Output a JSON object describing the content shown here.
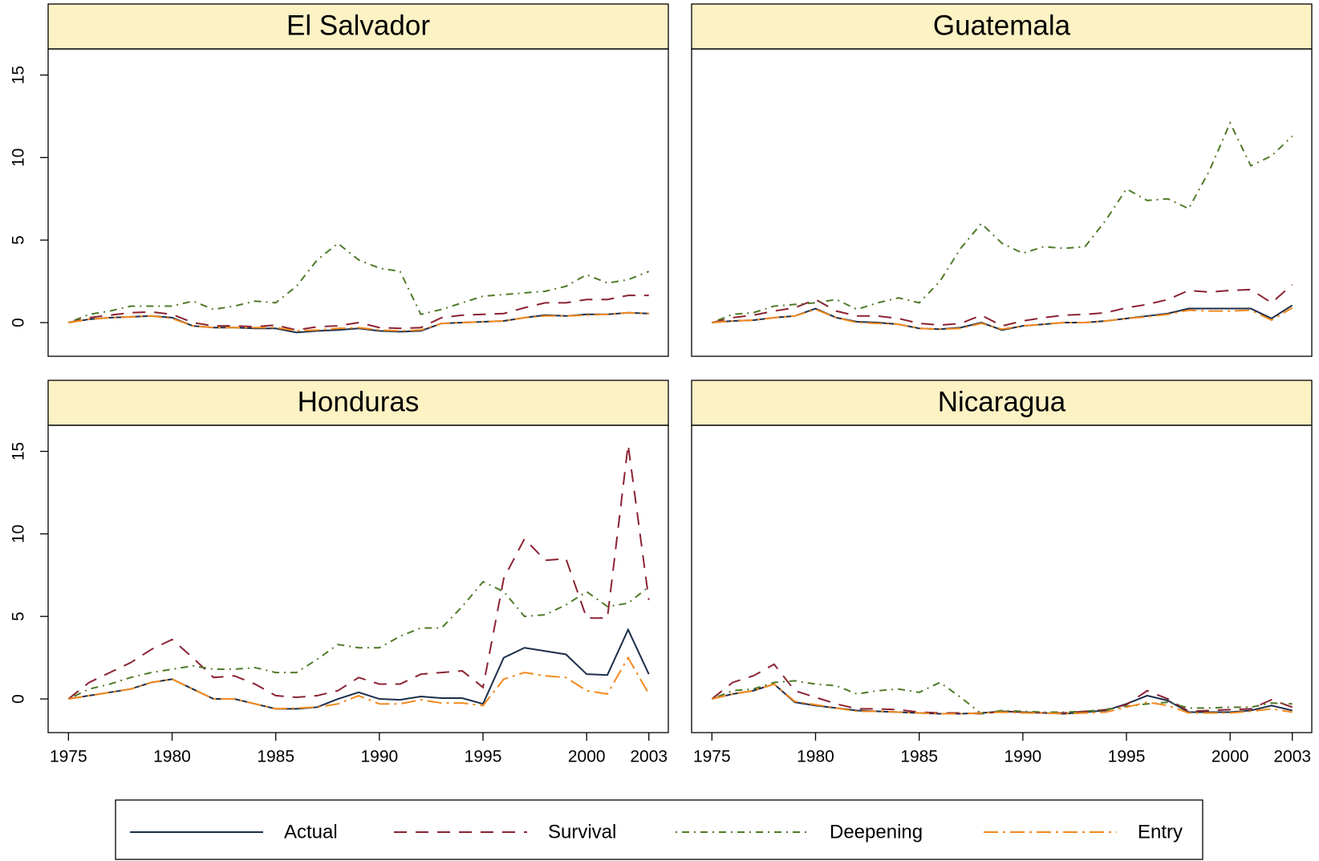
{
  "chart_data": [
    {
      "type": "line",
      "title": "El Salvador",
      "x": [
        1975,
        1976,
        1977,
        1978,
        1979,
        1980,
        1981,
        1982,
        1983,
        1984,
        1985,
        1986,
        1987,
        1988,
        1989,
        1990,
        1991,
        1992,
        1993,
        1994,
        1995,
        1996,
        1997,
        1998,
        1999,
        2000,
        2001,
        2002,
        2003
      ],
      "xlim": [
        1974.02,
        2003.94
      ],
      "ylim": [
        -2.04,
        16.58
      ],
      "yticks": [
        0,
        5,
        10,
        15
      ],
      "series": [
        {
          "name": "Actual",
          "color": "#1c2e4a",
          "linestyle": "solid",
          "values": [
            0,
            0.2,
            0.3,
            0.35,
            0.4,
            0.3,
            -0.2,
            -0.3,
            -0.3,
            -0.35,
            -0.35,
            -0.6,
            -0.5,
            -0.45,
            -0.35,
            -0.5,
            -0.55,
            -0.5,
            -0.05,
            0,
            0.05,
            0.1,
            0.3,
            0.45,
            0.4,
            0.5,
            0.5,
            0.6,
            0.55
          ]
        },
        {
          "name": "Survival",
          "color": "#8b2332",
          "linestyle": "dashed",
          "values": [
            0,
            0.3,
            0.45,
            0.6,
            0.65,
            0.5,
            0,
            -0.2,
            -0.2,
            -0.25,
            -0.15,
            -0.45,
            -0.25,
            -0.2,
            0,
            -0.3,
            -0.35,
            -0.3,
            0.3,
            0.45,
            0.5,
            0.55,
            0.9,
            1.2,
            1.2,
            1.4,
            1.4,
            1.65,
            1.65
          ]
        },
        {
          "name": "Deepening",
          "color": "#4f7a28",
          "linestyle": "dotdash",
          "values": [
            0,
            0.5,
            0.7,
            1,
            1,
            1,
            1.3,
            0.8,
            1,
            1.3,
            1.2,
            2.2,
            3.8,
            4.8,
            3.8,
            3.3,
            3.1,
            0.5,
            0.8,
            1.2,
            1.6,
            1.7,
            1.8,
            1.9,
            2.2,
            2.9,
            2.4,
            2.6,
            3.1
          ]
        },
        {
          "name": "Entry",
          "color": "#f28a1e",
          "linestyle": "longdash",
          "values": [
            0,
            0.2,
            0.3,
            0.35,
            0.4,
            0.25,
            -0.2,
            -0.3,
            -0.3,
            -0.3,
            -0.3,
            -0.5,
            -0.45,
            -0.35,
            -0.3,
            -0.45,
            -0.5,
            -0.45,
            -0.05,
            0,
            0.05,
            0.1,
            0.3,
            0.4,
            0.4,
            0.45,
            0.5,
            0.6,
            0.55
          ]
        }
      ]
    },
    {
      "type": "line",
      "title": "Guatemala",
      "x": [
        1975,
        1976,
        1977,
        1978,
        1979,
        1980,
        1981,
        1982,
        1983,
        1984,
        1985,
        1986,
        1987,
        1988,
        1989,
        1990,
        1991,
        1992,
        1993,
        1994,
        1995,
        1996,
        1997,
        1998,
        1999,
        2000,
        2001,
        2002,
        2003
      ],
      "xlim": [
        1974.02,
        2003.94
      ],
      "ylim": [
        -2.04,
        16.58
      ],
      "series": [
        {
          "name": "Actual",
          "color": "#1c2e4a",
          "linestyle": "solid",
          "values": [
            0,
            0.1,
            0.15,
            0.3,
            0.4,
            0.85,
            0.3,
            0.05,
            0,
            -0.1,
            -0.35,
            -0.4,
            -0.3,
            0,
            -0.45,
            -0.2,
            -0.1,
            0,
            0,
            0.1,
            0.25,
            0.4,
            0.55,
            0.85,
            0.85,
            0.85,
            0.85,
            0.25,
            1.05
          ]
        },
        {
          "name": "Survival",
          "color": "#8b2332",
          "linestyle": "dashed",
          "values": [
            0,
            0.3,
            0.45,
            0.7,
            0.9,
            1.4,
            0.7,
            0.4,
            0.4,
            0.25,
            -0.05,
            -0.15,
            -0.05,
            0.45,
            -0.2,
            0.1,
            0.3,
            0.45,
            0.5,
            0.6,
            0.9,
            1.1,
            1.4,
            1.95,
            1.85,
            1.95,
            2,
            1.2,
            2.3
          ]
        },
        {
          "name": "Deepening",
          "color": "#4f7a28",
          "linestyle": "dotdash",
          "values": [
            0,
            0.5,
            0.6,
            1,
            1.1,
            1.2,
            1.4,
            0.8,
            1.2,
            1.5,
            1.2,
            2.5,
            4.5,
            6,
            4.8,
            4.2,
            4.6,
            4.5,
            4.6,
            6.2,
            8.1,
            7.4,
            7.5,
            6.9,
            9.2,
            12.1,
            9.5,
            10.1,
            11.3
          ]
        },
        {
          "name": "Entry",
          "color": "#f28a1e",
          "linestyle": "longdash",
          "values": [
            0,
            0.1,
            0.15,
            0.3,
            0.4,
            0.8,
            0.3,
            0,
            -0.05,
            -0.1,
            -0.35,
            -0.4,
            -0.35,
            -0.05,
            -0.4,
            -0.2,
            -0.1,
            0,
            0,
            0.1,
            0.25,
            0.35,
            0.5,
            0.75,
            0.7,
            0.7,
            0.75,
            0.15,
            0.9
          ]
        }
      ]
    },
    {
      "type": "line",
      "title": "Honduras",
      "x": [
        1975,
        1976,
        1977,
        1978,
        1979,
        1980,
        1981,
        1982,
        1983,
        1984,
        1985,
        1986,
        1987,
        1988,
        1989,
        1990,
        1991,
        1992,
        1993,
        1994,
        1995,
        1996,
        1997,
        1998,
        1999,
        2000,
        2001,
        2002,
        2003
      ],
      "xlim": [
        1974.02,
        2003.94
      ],
      "ylim": [
        -2.04,
        16.58
      ],
      "yticks": [
        0,
        5,
        10,
        15
      ],
      "xticks": [
        1975,
        1980,
        1985,
        1990,
        1995,
        2000,
        2003
      ],
      "series": [
        {
          "name": "Actual",
          "color": "#1c2e4a",
          "linestyle": "solid",
          "values": [
            0,
            0.2,
            0.4,
            0.6,
            1,
            1.2,
            0.6,
            0,
            0,
            -0.3,
            -0.6,
            -0.6,
            -0.5,
            0,
            0.4,
            0,
            -0.05,
            0.15,
            0.05,
            0.05,
            -0.3,
            2.5,
            3.1,
            2.9,
            2.7,
            1.5,
            1.45,
            4.2,
            1.5
          ]
        },
        {
          "name": "Survival",
          "color": "#8b2332",
          "linestyle": "dashed",
          "values": [
            0,
            1,
            1.6,
            2.2,
            3,
            3.6,
            2.5,
            1.3,
            1.4,
            0.9,
            0.2,
            0.1,
            0.2,
            0.5,
            1.3,
            0.9,
            0.9,
            1.5,
            1.6,
            1.7,
            0.7,
            7.3,
            9.7,
            8.4,
            8.5,
            4.9,
            4.9,
            15.4,
            6
          ]
        },
        {
          "name": "Deepening",
          "color": "#4f7a28",
          "linestyle": "dotdash",
          "values": [
            0,
            0.6,
            0.9,
            1.3,
            1.6,
            1.8,
            2,
            1.8,
            1.8,
            1.9,
            1.6,
            1.6,
            2.4,
            3.3,
            3.1,
            3.1,
            3.8,
            4.3,
            4.3,
            5.6,
            7.1,
            6.5,
            5,
            5.1,
            5.7,
            6.5,
            5.6,
            5.8,
            6.8
          ]
        },
        {
          "name": "Entry",
          "color": "#f28a1e",
          "linestyle": "longdash",
          "values": [
            0,
            0.2,
            0.4,
            0.6,
            1,
            1.2,
            0.6,
            0,
            0,
            -0.3,
            -0.6,
            -0.55,
            -0.5,
            -0.3,
            0.2,
            -0.3,
            -0.3,
            -0.05,
            -0.25,
            -0.25,
            -0.4,
            1.2,
            1.6,
            1.4,
            1.3,
            0.5,
            0.3,
            2.5,
            0.3
          ]
        }
      ]
    },
    {
      "type": "line",
      "title": "Nicaragua",
      "x": [
        1975,
        1976,
        1977,
        1978,
        1979,
        1980,
        1981,
        1982,
        1983,
        1984,
        1985,
        1986,
        1987,
        1988,
        1989,
        1990,
        1991,
        1992,
        1993,
        1994,
        1995,
        1996,
        1997,
        1998,
        1999,
        2000,
        2001,
        2002,
        2003
      ],
      "xlim": [
        1974.02,
        2003.94
      ],
      "ylim": [
        -2.04,
        16.58
      ],
      "xticks": [
        1975,
        1980,
        1985,
        1990,
        1995,
        2000,
        2003
      ],
      "series": [
        {
          "name": "Actual",
          "color": "#1c2e4a",
          "linestyle": "solid",
          "values": [
            0,
            0.3,
            0.5,
            0.9,
            -0.2,
            -0.4,
            -0.55,
            -0.7,
            -0.75,
            -0.8,
            -0.85,
            -0.9,
            -0.9,
            -0.85,
            -0.75,
            -0.8,
            -0.85,
            -0.9,
            -0.8,
            -0.7,
            -0.3,
            0.2,
            -0.1,
            -0.8,
            -0.8,
            -0.8,
            -0.7,
            -0.4,
            -0.7
          ]
        },
        {
          "name": "Survival",
          "color": "#8b2332",
          "linestyle": "dashed",
          "values": [
            0,
            1,
            1.4,
            2.1,
            0.5,
            0.1,
            -0.3,
            -0.6,
            -0.6,
            -0.65,
            -0.8,
            -0.85,
            -0.85,
            -0.9,
            -0.75,
            -0.8,
            -0.85,
            -0.85,
            -0.75,
            -0.65,
            -0.35,
            0.5,
            0,
            -0.75,
            -0.7,
            -0.65,
            -0.6,
            -0.05,
            -0.5
          ]
        },
        {
          "name": "Deepening",
          "color": "#4f7a28",
          "linestyle": "dotdash",
          "values": [
            0,
            0.5,
            0.6,
            1,
            1.1,
            0.9,
            0.8,
            0.3,
            0.5,
            0.6,
            0.4,
            1,
            0.1,
            -0.9,
            -0.7,
            -0.75,
            -0.8,
            -0.8,
            -0.75,
            -0.65,
            -0.45,
            -0.3,
            -0.2,
            -0.55,
            -0.55,
            -0.5,
            -0.5,
            -0.25,
            -0.3
          ]
        },
        {
          "name": "Entry",
          "color": "#f28a1e",
          "linestyle": "longdash",
          "values": [
            0,
            0.3,
            0.5,
            0.9,
            -0.15,
            -0.35,
            -0.55,
            -0.75,
            -0.75,
            -0.8,
            -0.85,
            -0.9,
            -0.9,
            -0.85,
            -0.8,
            -0.85,
            -0.85,
            -0.9,
            -0.85,
            -0.8,
            -0.5,
            -0.2,
            -0.4,
            -0.85,
            -0.85,
            -0.85,
            -0.75,
            -0.6,
            -0.8
          ]
        }
      ]
    }
  ]
}
